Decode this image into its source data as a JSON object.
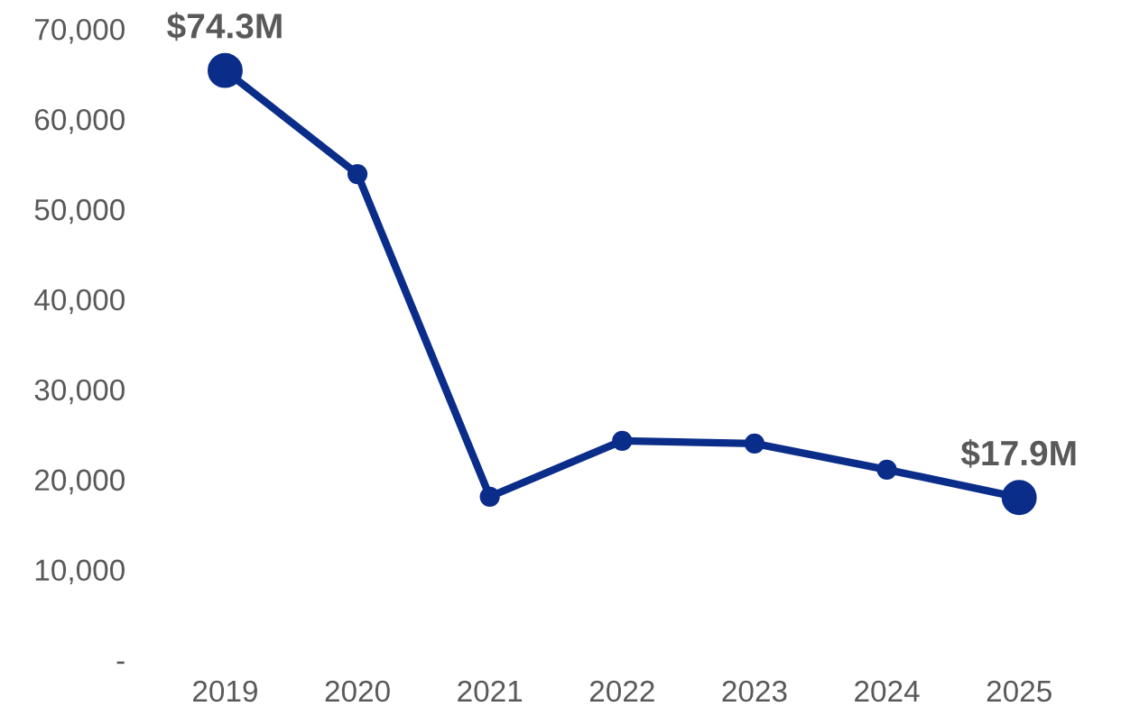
{
  "chart_data": {
    "type": "line",
    "categories": [
      "2019",
      "2020",
      "2021",
      "2022",
      "2023",
      "2024",
      "2025"
    ],
    "series": [
      {
        "color": "#0b2d8a",
        "values": [
          65400,
          53900,
          18100,
          24300,
          24000,
          21100,
          18000
        ]
      }
    ],
    "ylim": [
      0,
      70000
    ],
    "yticks": [
      {
        "value": 0,
        "label": "-"
      },
      {
        "value": 10000,
        "label": "10,000"
      },
      {
        "value": 20000,
        "label": "20,000"
      },
      {
        "value": 30000,
        "label": "30,000"
      },
      {
        "value": 40000,
        "label": "40,000"
      },
      {
        "value": 50000,
        "label": "50,000"
      },
      {
        "value": 60000,
        "label": "60,000"
      },
      {
        "value": 70000,
        "label": "70,000"
      }
    ],
    "annotations": [
      {
        "text": "$74.3M",
        "x": "2019",
        "y": 65400
      },
      {
        "text": "$17.9M",
        "x": "2025",
        "y": 18000
      }
    ],
    "marker": "circle",
    "line_style": "solid",
    "grid": false,
    "legend": false
  }
}
